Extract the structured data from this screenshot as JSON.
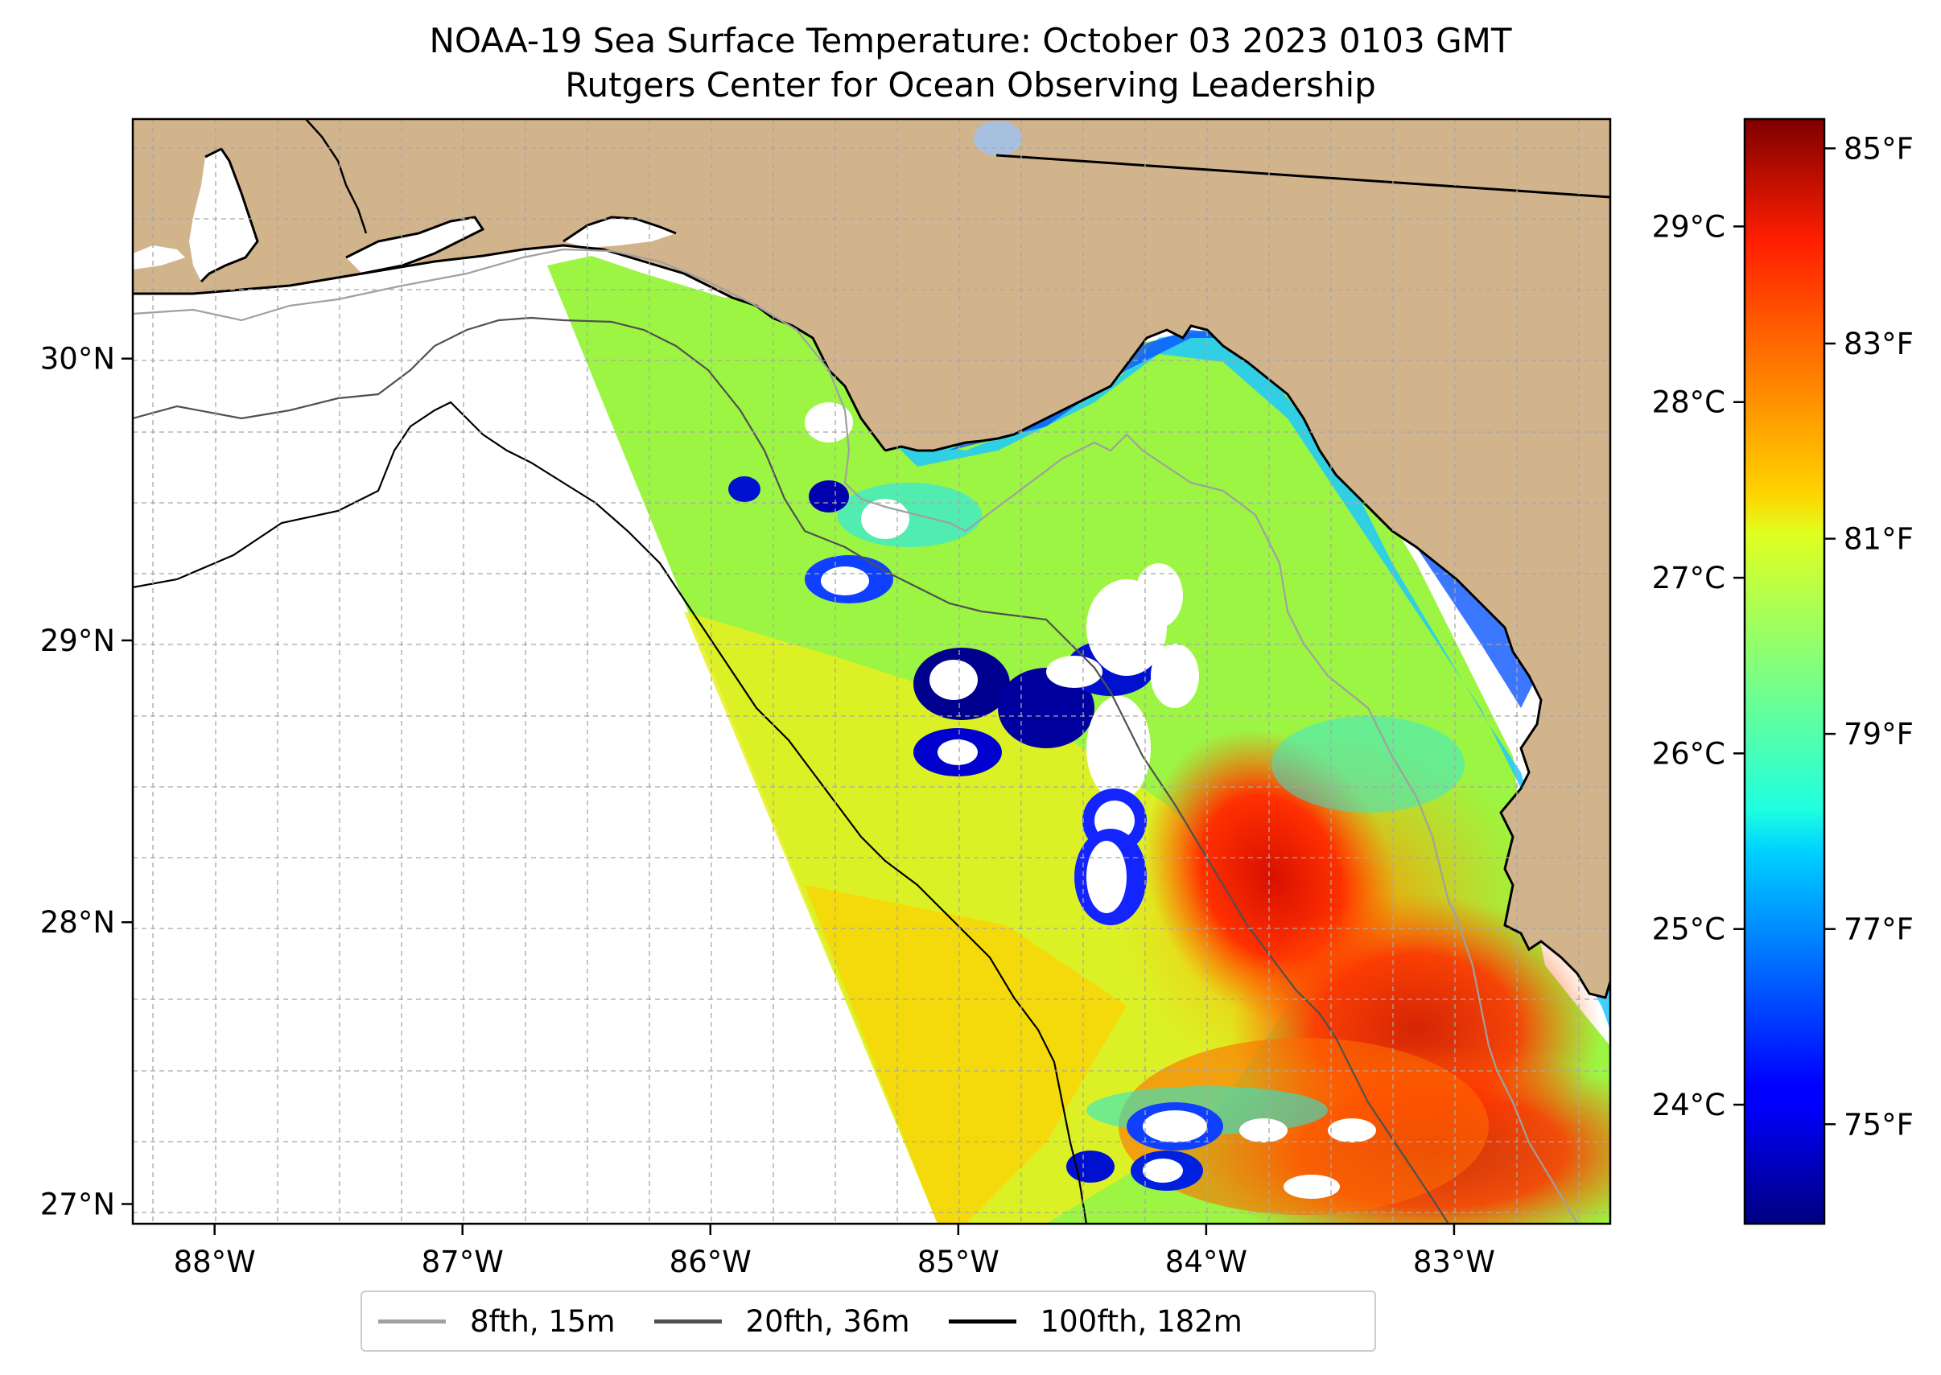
{
  "title": "NOAA-19 Sea Surface Temperature: October 03 2023 0103 GMT",
  "subtitle": "Rutgers Center for Ocean Observing Leadership",
  "map": {
    "lon_range": [
      -88.33,
      -82.37
    ],
    "lat_range": [
      26.93,
      30.85
    ],
    "projection": "plate-carree",
    "land_color": "#d2b48c",
    "gridlines": "dashed",
    "lon_ticks": [
      {
        "value": -88,
        "label": "88°W"
      },
      {
        "value": -87,
        "label": "87°W"
      },
      {
        "value": -86,
        "label": "86°W"
      },
      {
        "value": -85,
        "label": "85°W"
      },
      {
        "value": -84,
        "label": "84°W"
      },
      {
        "value": -83,
        "label": "83°W"
      }
    ],
    "lat_ticks": [
      {
        "value": 30,
        "label": "30°N"
      },
      {
        "value": 29,
        "label": "29°N"
      },
      {
        "value": 28,
        "label": "28°N"
      },
      {
        "value": 27,
        "label": "27°N"
      }
    ]
  },
  "colorbar": {
    "colormap": "jet",
    "celsius_ticks": [
      {
        "value": 29,
        "label": "29°C"
      },
      {
        "value": 28,
        "label": "28°C"
      },
      {
        "value": 27,
        "label": "27°C"
      },
      {
        "value": 26,
        "label": "26°C"
      },
      {
        "value": 25,
        "label": "25°C"
      },
      {
        "value": 24,
        "label": "24°C"
      }
    ],
    "fahrenheit_ticks": [
      {
        "value": 85,
        "label": "85°F"
      },
      {
        "value": 83,
        "label": "83°F"
      },
      {
        "value": 81,
        "label": "81°F"
      },
      {
        "value": 79,
        "label": "79°F"
      },
      {
        "value": 77,
        "label": "77°F"
      },
      {
        "value": 75,
        "label": "75°F"
      }
    ]
  },
  "legend": {
    "placement": "bottom-center",
    "items": [
      {
        "label": "8fth, 15m",
        "color": "#a0a0a0"
      },
      {
        "label": "20fth, 36m",
        "color": "#505050"
      },
      {
        "label": "100fth, 182m",
        "color": "#000000"
      }
    ]
  }
}
